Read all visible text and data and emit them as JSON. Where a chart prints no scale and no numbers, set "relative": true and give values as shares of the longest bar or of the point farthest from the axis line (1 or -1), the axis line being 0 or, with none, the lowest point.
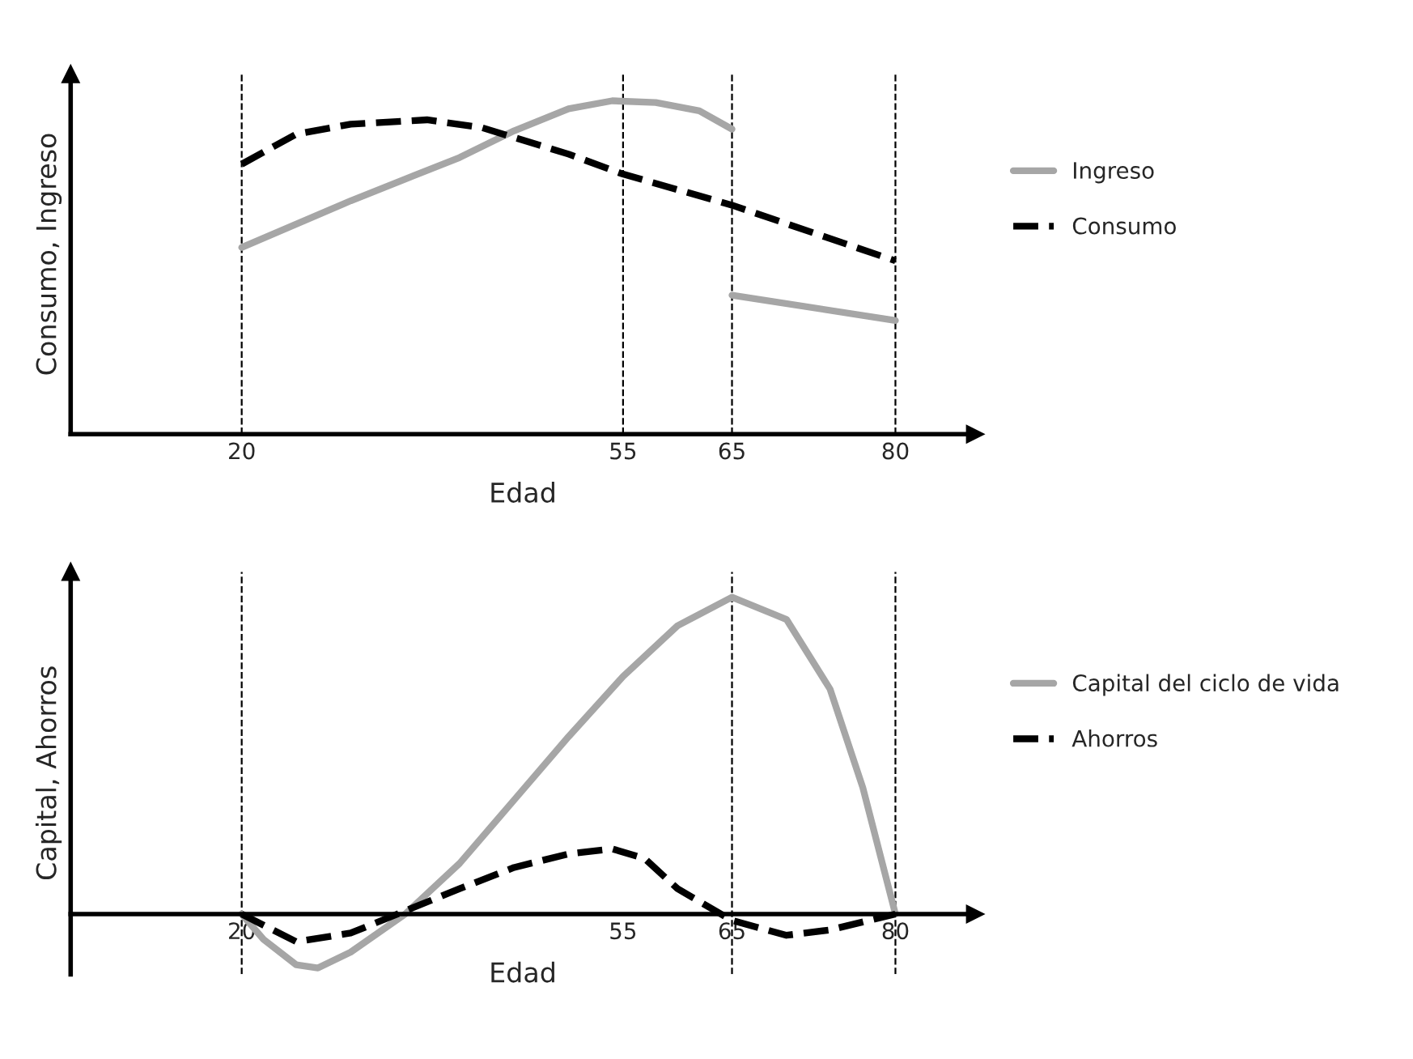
{
  "chart_data": [
    {
      "type": "line",
      "relative": true,
      "ylabel": "Consumo, Ingreso",
      "xlabel": "Edad",
      "xlim": [
        4.3,
        87.3
      ],
      "xticks": [
        20,
        55,
        65,
        80
      ],
      "tick_labels": "x",
      "legend": "right",
      "grid": false,
      "series": [
        {
          "name": "Ingreso",
          "color": "#a6a6a6",
          "line_style": "solid",
          "x": [
            20,
            30,
            40,
            45,
            50,
            54,
            58,
            62,
            65
          ],
          "values": [
            0.56,
            0.7,
            0.83,
            0.91,
            0.976,
            1.0,
            0.995,
            0.97,
            0.915
          ]
        },
        {
          "color": "#a6a6a6",
          "line_style": "solid",
          "x": [
            65,
            80
          ],
          "values": [
            0.417,
            0.341
          ]
        },
        {
          "name": "Consumo",
          "color": "#000000",
          "line_style": "dashed",
          "x": [
            20,
            25,
            30,
            37,
            42,
            50,
            55,
            65,
            80
          ],
          "values": [
            0.81,
            0.9,
            0.93,
            0.943,
            0.92,
            0.84,
            0.78,
            0.687,
            0.52
          ]
        }
      ],
      "ref_lines": [
        {
          "axis": "x",
          "value": 20,
          "color": "#000000",
          "line_style": "dashed"
        },
        {
          "axis": "x",
          "value": 55,
          "color": "#000000",
          "line_style": "dashed"
        },
        {
          "axis": "x",
          "value": 65,
          "color": "#000000",
          "line_style": "dashed"
        },
        {
          "axis": "x",
          "value": 80,
          "color": "#000000",
          "line_style": "dashed"
        }
      ]
    },
    {
      "type": "line",
      "relative": true,
      "ylabel": "Capital, Ahorros",
      "xlabel": "Edad",
      "xlim": [
        4.3,
        87.3
      ],
      "xticks": [
        20,
        55,
        65,
        80
      ],
      "tick_labels": "x",
      "legend": "right",
      "grid": false,
      "series": [
        {
          "name": "Capital del ciclo de vida",
          "color": "#a6a6a6",
          "line_style": "solid",
          "x": [
            20,
            22,
            25,
            27,
            30,
            35,
            40,
            45,
            50,
            55,
            60,
            65,
            70,
            74,
            77,
            80
          ],
          "values": [
            0,
            -0.08,
            -0.16,
            -0.17,
            -0.12,
            0,
            0.16,
            0.36,
            0.56,
            0.75,
            0.91,
            1.0,
            0.93,
            0.71,
            0.4,
            0
          ]
        },
        {
          "name": "Ahorros",
          "color": "#000000",
          "line_style": "dashed",
          "x": [
            20,
            25,
            30,
            35,
            40,
            45,
            50,
            54,
            57,
            60,
            65,
            70,
            74,
            80
          ],
          "values": [
            0,
            -0.087,
            -0.06,
            0.01,
            0.08,
            0.147,
            0.19,
            0.206,
            0.175,
            0.08,
            -0.02,
            -0.067,
            -0.05,
            0
          ]
        }
      ],
      "ref_lines": [
        {
          "axis": "x",
          "value": 20,
          "color": "#000000",
          "line_style": "dashed"
        },
        {
          "axis": "x",
          "value": 65,
          "color": "#000000",
          "line_style": "dashed"
        },
        {
          "axis": "x",
          "value": 80,
          "color": "#000000",
          "line_style": "dashed"
        }
      ]
    }
  ]
}
